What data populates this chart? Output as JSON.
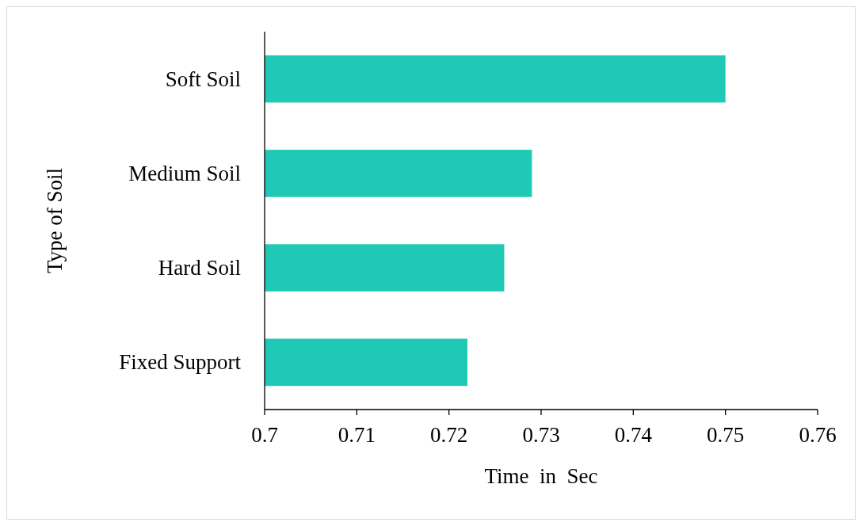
{
  "chart_data": {
    "type": "bar",
    "orientation": "horizontal",
    "xlabel": "Time  in  Sec",
    "ylabel": "Type of Soil",
    "categories": [
      "Soft Soil",
      "Medium Soil",
      "Hard Soil",
      "Fixed Support"
    ],
    "values": [
      0.75,
      0.729,
      0.726,
      0.722
    ],
    "color": "#20c9b5",
    "xlim": [
      0.7,
      0.76
    ],
    "xticks": [
      0.7,
      0.71,
      0.72,
      0.73,
      0.74,
      0.75,
      0.76
    ]
  }
}
